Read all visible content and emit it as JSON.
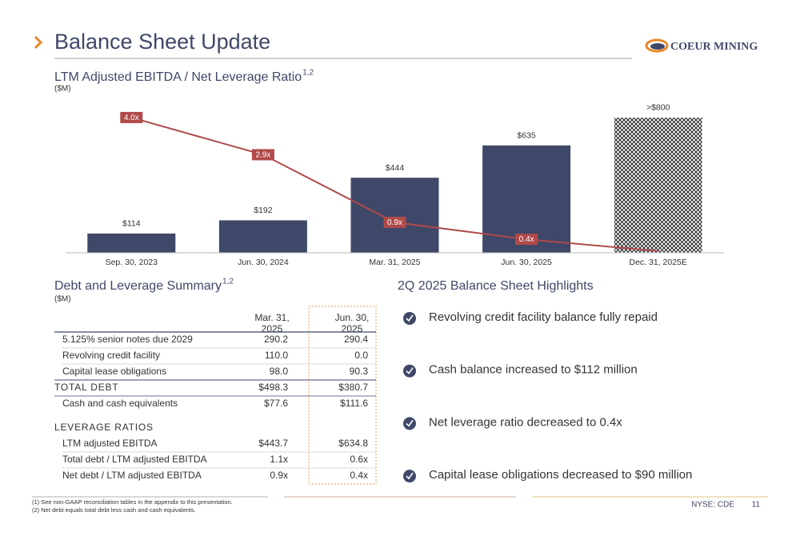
{
  "header": {
    "title": "Balance Sheet Update",
    "logo": "COEUR MINING"
  },
  "chart_data": {
    "type": "combo",
    "title": "LTM Adjusted EBITDA / Net Leverage Ratio",
    "title_sup": "1,2",
    "subtitle": "($M)",
    "categories": [
      "Sep. 30, 2023",
      "Jun. 30, 2024",
      "Mar. 31, 2025",
      "Jun. 30, 2025",
      "Dec. 31, 2025E"
    ],
    "ylim": [
      0,
      880
    ],
    "y2lim": [
      0,
      4.4
    ],
    "series": [
      {
        "type": "bar",
        "color": "#3f4868",
        "values": [
          114,
          192,
          444,
          635,
          800
        ],
        "value_labels": [
          "$114",
          "$192",
          "$444",
          "$635",
          ">$800"
        ],
        "hatched": [
          false,
          false,
          false,
          false,
          true
        ]
      },
      {
        "type": "line",
        "axis": "y2",
        "color": "#b04a4a",
        "values": [
          4.0,
          2.9,
          0.9,
          0.4,
          0.05
        ],
        "value_labels": [
          "4.0x",
          "2.9x",
          "0.9x",
          "0.4x",
          null
        ]
      }
    ]
  },
  "table": {
    "title": "Debt and Leverage Summary",
    "title_sup": "1,2",
    "subtitle": "($M)",
    "columns": [
      [
        "Mar. 31,",
        "2025"
      ],
      [
        "Jun. 30,",
        "2025"
      ]
    ],
    "rows": [
      {
        "label": "5.125% senior notes due 2029",
        "values": [
          "290.2",
          "290.4"
        ]
      },
      {
        "label": "Revolving credit facility",
        "values": [
          "110.0",
          "0.0"
        ]
      },
      {
        "label": "Capital lease obligations",
        "values": [
          "98.0",
          "90.3"
        ]
      },
      {
        "label": "TOTAL DEBT",
        "kind": "total",
        "values": [
          "$498.3",
          "$380.7"
        ]
      },
      {
        "label": "Cash and cash equivalents",
        "values": [
          "$77.6",
          "$111.6"
        ]
      },
      {
        "label": "LEVERAGE RATIOS",
        "kind": "section",
        "values": []
      },
      {
        "label": "LTM adjusted EBITDA",
        "values": [
          "$443.7",
          "$634.8"
        ]
      },
      {
        "label": "Total debt / LTM adjusted EBITDA",
        "values": [
          "1.1x",
          "0.6x"
        ]
      },
      {
        "label": "Net debt / LTM adjusted EBITDA",
        "values": [
          "0.9x",
          "0.4x"
        ]
      }
    ]
  },
  "highlights": {
    "title": "2Q 2025 Balance Sheet Highlights",
    "items": [
      "Revolving credit facility balance fully repaid",
      "Cash balance increased to $112 million",
      "Net leverage ratio decreased to 0.4x",
      "Capital lease obligations decreased to $90 million"
    ]
  },
  "footer": {
    "notes": [
      "(1) See non-GAAP reconciliation tables in the appendix to this presentation.",
      "(2) Net debt equals total debt less cash and cash equivalents."
    ],
    "ticker": "NYSE: CDE",
    "page": "11"
  }
}
